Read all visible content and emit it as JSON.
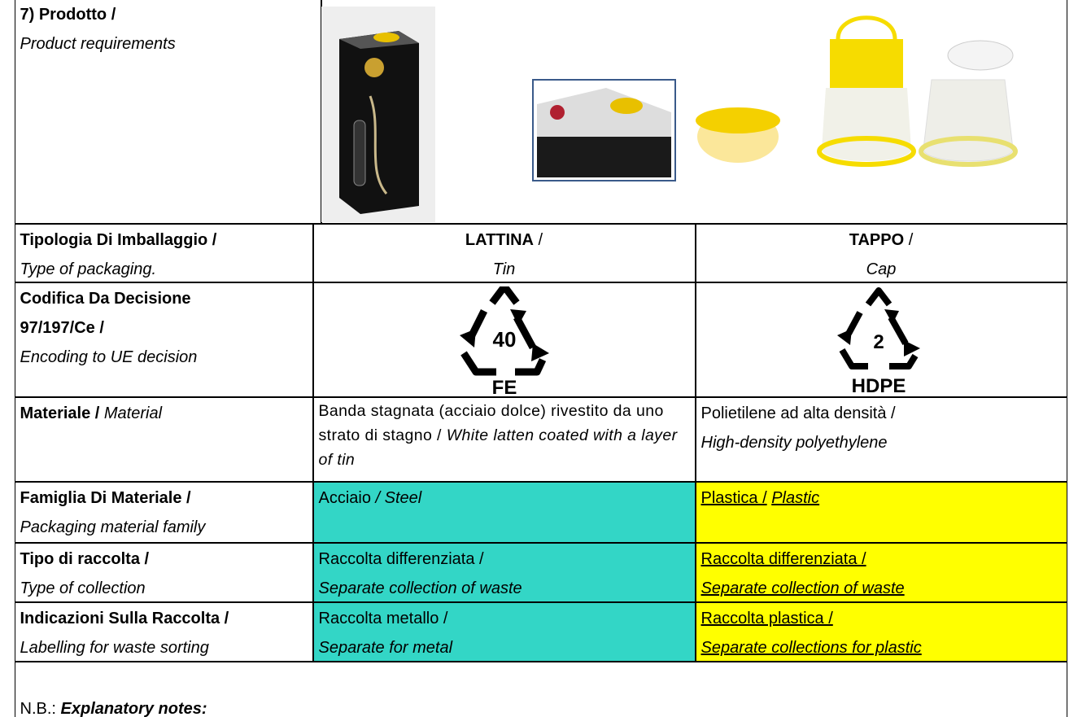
{
  "product": {
    "label": "7) Prodotto /",
    "label_en": "Product requirements"
  },
  "packaging_type": {
    "label": "Tipologia Di Imballaggio /",
    "label_en": "Type of packaging.",
    "tin": {
      "name": "LATTINA",
      "sep": "/",
      "name_en": "Tin"
    },
    "cap": {
      "name": "TAPPO",
      "sep": "/",
      "name_en": "Cap"
    }
  },
  "encoding": {
    "label": "Codifica Da Decisione",
    "label_2": "97/197/Ce /",
    "label_en": "Encoding to UE decision",
    "tin": {
      "code": "40",
      "abbr": "FE"
    },
    "cap": {
      "code": "2",
      "abbr": "HDPE"
    }
  },
  "material": {
    "label": "Materiale /",
    "label_en": "Material",
    "tin": {
      "text": "Banda stagnata (acciaio dolce) rivestito da uno strato di stagno /",
      "text_en": "White latten coated with a layer of tin"
    },
    "cap": {
      "text": "Polietilene ad alta densità /",
      "text_en": "High-density polyethylene"
    }
  },
  "material_family": {
    "label": "Famiglia Di Materiale /",
    "label_en": "Packaging material family",
    "tin": {
      "text": "Acciaio",
      "text_en": "/ Steel"
    },
    "cap": {
      "text": "Plastica /",
      "text_en": "Plastic"
    }
  },
  "collection_type": {
    "label": "Tipo di raccolta /",
    "label_en": "Type of collection",
    "tin": {
      "text": "Raccolta differenziata /",
      "text_en": "Separate collection of waste"
    },
    "cap": {
      "text": "Raccolta differenziata /",
      "text_en": "Separate collection of waste"
    }
  },
  "collection_labels": {
    "label": "Indicazioni Sulla Raccolta /",
    "label_en": "Labelling for waste sorting",
    "tin": {
      "text": "Raccolta metallo /",
      "text_en": "Separate for metal"
    },
    "cap": {
      "text": "Raccolta plastica /",
      "text_en": "Separate collections for plastic"
    }
  },
  "notes": {
    "label": "N.B.:",
    "title": "Explanatory notes:"
  }
}
